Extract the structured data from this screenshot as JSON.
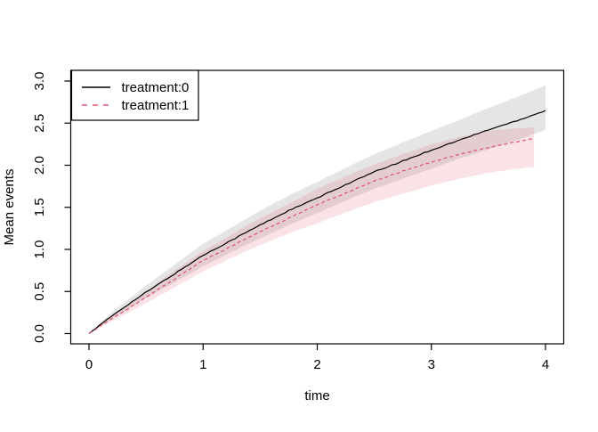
{
  "figure": {
    "background": "#ffffff",
    "title": ""
  },
  "chart_data": {
    "type": "line",
    "title": "",
    "xlabel": "time",
    "ylabel": "Mean events",
    "xlim": [
      0,
      4
    ],
    "ylim": [
      0,
      3
    ],
    "x_ticks": [
      "0",
      "1",
      "2",
      "3",
      "4"
    ],
    "y_ticks": [
      "0.0",
      "0.5",
      "1.0",
      "1.5",
      "2.0",
      "2.5",
      "3.0"
    ],
    "grid": false,
    "legend_position": "top-left",
    "frame_color": "#000000",
    "series": [
      {
        "name": "treatment:0",
        "color": "#000000",
        "linestyle": "solid",
        "band_color": "rgba(0,0,0,0.10)",
        "x": [
          0,
          0.25,
          0.5,
          0.75,
          1,
          1.25,
          1.5,
          1.75,
          2,
          2.25,
          2.5,
          2.75,
          3,
          3.25,
          3.5,
          3.75,
          4
        ],
        "y": [
          0,
          0.26,
          0.49,
          0.71,
          0.93,
          1.11,
          1.29,
          1.46,
          1.61,
          1.77,
          1.92,
          2.05,
          2.18,
          2.3,
          2.42,
          2.53,
          2.65
        ],
        "upper": [
          0,
          0.31,
          0.57,
          0.82,
          1.07,
          1.26,
          1.46,
          1.64,
          1.8,
          1.97,
          2.13,
          2.27,
          2.41,
          2.54,
          2.68,
          2.81,
          2.95
        ],
        "lower": [
          0,
          0.22,
          0.42,
          0.61,
          0.8,
          0.97,
          1.13,
          1.29,
          1.43,
          1.58,
          1.72,
          1.84,
          1.96,
          2.08,
          2.19,
          2.3,
          2.42
        ]
      },
      {
        "name": "treatment:1",
        "color": "#DF536B",
        "linestyle": "dashed",
        "band_color": "rgba(223,83,107,0.16)",
        "x": [
          0,
          0.25,
          0.5,
          0.75,
          1,
          1.25,
          1.5,
          1.75,
          2,
          2.25,
          2.5,
          2.75,
          3,
          3.25,
          3.5,
          3.75,
          3.9
        ],
        "y": [
          0,
          0.22,
          0.43,
          0.65,
          0.87,
          1.04,
          1.21,
          1.37,
          1.53,
          1.67,
          1.81,
          1.93,
          2.04,
          2.13,
          2.21,
          2.28,
          2.32
        ],
        "upper": [
          0,
          0.26,
          0.5,
          0.75,
          0.98,
          1.18,
          1.37,
          1.54,
          1.72,
          1.87,
          2.01,
          2.13,
          2.25,
          2.34,
          2.41,
          2.44,
          2.45
        ],
        "lower": [
          0,
          0.18,
          0.36,
          0.55,
          0.74,
          0.9,
          1.05,
          1.19,
          1.31,
          1.44,
          1.56,
          1.66,
          1.76,
          1.84,
          1.91,
          1.96,
          1.98
        ]
      }
    ]
  }
}
